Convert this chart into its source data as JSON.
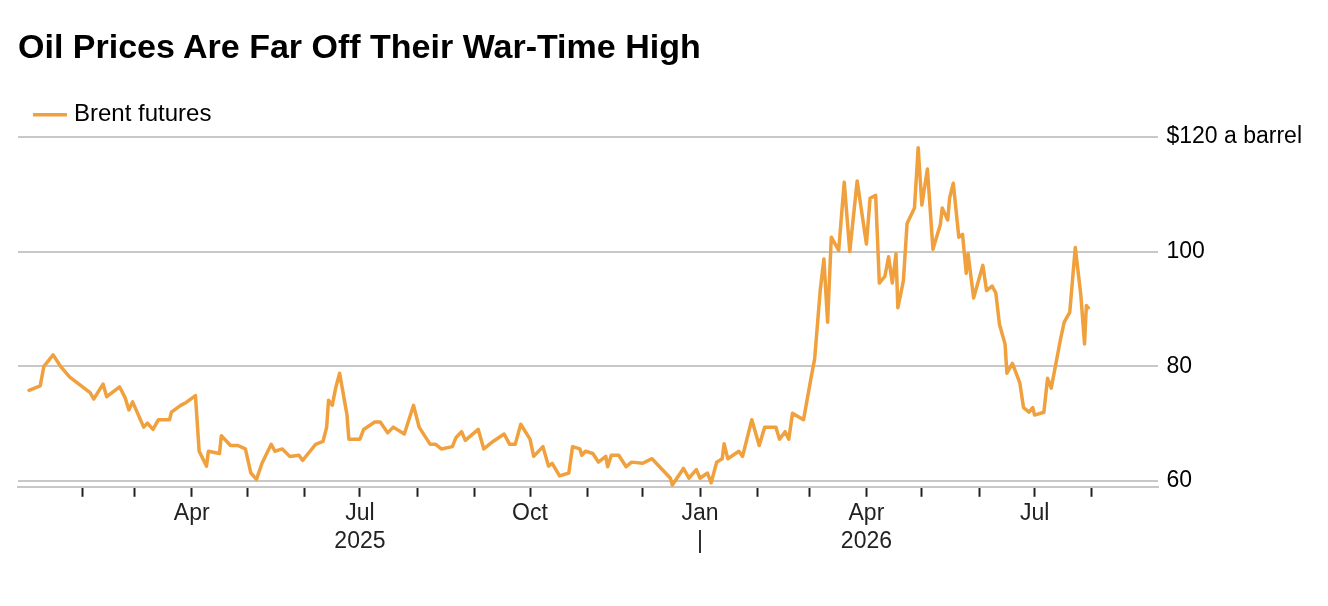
{
  "chart_data": {
    "type": "line",
    "title": "Oil Prices Are Far Off Their War-Time High",
    "x": [
      "2025-01-03",
      "2025-01-09",
      "2025-01-11",
      "2025-01-16",
      "2025-01-20",
      "2025-01-25",
      "2025-02-05",
      "2025-02-07",
      "2025-02-12",
      "2025-02-14",
      "2025-02-21",
      "2025-02-24",
      "2025-02-26",
      "2025-02-28",
      "2025-03-06",
      "2025-03-08",
      "2025-03-11",
      "2025-03-14",
      "2025-03-20",
      "2025-03-21",
      "2025-03-26",
      "2025-03-29",
      "2025-04-03",
      "2025-04-05",
      "2025-04-09",
      "2025-04-10",
      "2025-04-16",
      "2025-04-17",
      "2025-04-22",
      "2025-04-26",
      "2025-04-30",
      "2025-05-03",
      "2025-05-06",
      "2025-05-09",
      "2025-05-14",
      "2025-05-16",
      "2025-05-20",
      "2025-05-24",
      "2025-05-29",
      "2025-05-31",
      "2025-06-04",
      "2025-06-07",
      "2025-06-11",
      "2025-06-13",
      "2025-06-14",
      "2025-06-16",
      "2025-06-18",
      "2025-06-20",
      "2025-06-24",
      "2025-06-25",
      "2025-07-01",
      "2025-07-03",
      "2025-07-09",
      "2025-07-12",
      "2025-07-16",
      "2025-07-19",
      "2025-07-25",
      "2025-07-30",
      "2025-08-02",
      "2025-08-08",
      "2025-08-11",
      "2025-08-14",
      "2025-08-20",
      "2025-08-22",
      "2025-08-25",
      "2025-08-27",
      "2025-09-03",
      "2025-09-06",
      "2025-09-11",
      "2025-09-17",
      "2025-09-20",
      "2025-09-23",
      "2025-09-26",
      "2025-10-01",
      "2025-10-03",
      "2025-10-08",
      "2025-10-11",
      "2025-10-13",
      "2025-10-17",
      "2025-10-22",
      "2025-10-24",
      "2025-10-28",
      "2025-10-29",
      "2025-10-31",
      "2025-11-04",
      "2025-11-07",
      "2025-11-11",
      "2025-11-12",
      "2025-11-14",
      "2025-11-18",
      "2025-11-22",
      "2025-11-25",
      "2025-12-01",
      "2025-12-06",
      "2025-12-11",
      "2025-12-16",
      "2025-12-17",
      "2025-12-23",
      "2025-12-26",
      "2025-12-30",
      "2026-01-01",
      "2026-01-05",
      "2026-01-07",
      "2026-01-10",
      "2026-01-13",
      "2026-01-14",
      "2026-01-16",
      "2026-01-22",
      "2026-01-24",
      "2026-01-29",
      "2026-02-02",
      "2026-02-05",
      "2026-02-11",
      "2026-02-13",
      "2026-02-16",
      "2026-02-18",
      "2026-02-20",
      "2026-02-26",
      "2026-03-02",
      "2026-03-04",
      "2026-03-07",
      "2026-03-09",
      "2026-03-11",
      "2026-03-13",
      "2026-03-17",
      "2026-03-20",
      "2026-03-23",
      "2026-03-27",
      "2026-04-01",
      "2026-04-03",
      "2026-04-06",
      "2026-04-08",
      "2026-04-11",
      "2026-04-13",
      "2026-04-15",
      "2026-04-17",
      "2026-04-18",
      "2026-04-21",
      "2026-04-23",
      "2026-04-27",
      "2026-04-29",
      "2026-05-01",
      "2026-05-04",
      "2026-05-07",
      "2026-05-11",
      "2026-05-12",
      "2026-05-15",
      "2026-05-16",
      "2026-05-18",
      "2026-05-21",
      "2026-05-23",
      "2026-05-25",
      "2026-05-26",
      "2026-05-29",
      "2026-06-03",
      "2026-06-05",
      "2026-06-08",
      "2026-06-10",
      "2026-06-12",
      "2026-06-15",
      "2026-06-16",
      "2026-06-19",
      "2026-06-23",
      "2026-06-25",
      "2026-06-28",
      "2026-06-30",
      "2026-07-01",
      "2026-07-06",
      "2026-07-08",
      "2026-07-10",
      "2026-07-15",
      "2026-07-17",
      "2026-07-20",
      "2026-07-23",
      "2026-07-26",
      "2026-07-28",
      "2026-07-29",
      "2026-07-30"
    ],
    "series": [
      {
        "name": "Brent futures",
        "color": "#f0a03c",
        "values": [
          75.8,
          76.6,
          80.0,
          82.0,
          80.0,
          78.1,
          75.4,
          74.3,
          76.9,
          74.7,
          76.4,
          74.5,
          72.4,
          73.8,
          69.4,
          70.1,
          69.0,
          70.7,
          70.7,
          72.0,
          73.2,
          73.7,
          74.9,
          65.2,
          62.6,
          65.2,
          64.8,
          67.9,
          66.2,
          66.2,
          65.6,
          61.4,
          60.3,
          63.1,
          66.4,
          65.2,
          65.6,
          64.3,
          64.5,
          63.6,
          65.2,
          66.4,
          66.9,
          69.4,
          74.1,
          73.2,
          76.4,
          78.8,
          71.5,
          67.3,
          67.3,
          69.0,
          70.3,
          70.3,
          68.4,
          69.4,
          68.2,
          73.2,
          69.4,
          66.4,
          66.4,
          65.6,
          66.0,
          67.6,
          68.6,
          67.1,
          69.0,
          65.6,
          66.9,
          68.2,
          66.4,
          66.4,
          69.9,
          67.3,
          64.3,
          66.0,
          62.6,
          63.1,
          60.9,
          61.4,
          66.0,
          65.6,
          64.5,
          65.2,
          64.8,
          63.3,
          64.3,
          62.5,
          64.5,
          64.5,
          62.5,
          63.3,
          63.1,
          63.9,
          62.2,
          60.5,
          59.3,
          62.2,
          60.5,
          62.0,
          60.5,
          61.4,
          59.7,
          63.3,
          63.9,
          66.5,
          63.9,
          65.2,
          64.3,
          70.7,
          66.2,
          69.4,
          69.4,
          67.3,
          68.6,
          67.3,
          71.8,
          70.7,
          77.9,
          81.3,
          93.2,
          98.7,
          87.7,
          102.5,
          100.2,
          112.1,
          100.0,
          112.3,
          101.3,
          109.3,
          109.8,
          94.5,
          95.7,
          99.1,
          94.5,
          99.6,
          90.2,
          94.9,
          104.9,
          107.6,
          118.1,
          108.1,
          114.4,
          100.4,
          104.7,
          107.6,
          105.5,
          109.3,
          111.9,
          102.5,
          103.0,
          96.2,
          99.6,
          91.9,
          97.6,
          93.2,
          94.0,
          92.8,
          87.3,
          83.9,
          78.8,
          80.5,
          77.1,
          72.8,
          72.0,
          72.8,
          71.5,
          72.0,
          77.9,
          76.2,
          84.7,
          87.7,
          89.4,
          100.7,
          92.4,
          83.9,
          90.6,
          90.2
        ]
      }
    ],
    "xlim": [
      "2024-12-28",
      "2026-09-06"
    ],
    "xticks": [
      {
        "value": "2025-02-01",
        "label": null
      },
      {
        "value": "2025-03-01",
        "label": null
      },
      {
        "value": "2025-04-01",
        "label": "Apr"
      },
      {
        "value": "2025-05-01",
        "label": null
      },
      {
        "value": "2025-06-01",
        "label": null
      },
      {
        "value": "2025-07-01",
        "label": "Jul\n2025"
      },
      {
        "value": "2025-08-01",
        "label": null
      },
      {
        "value": "2025-09-01",
        "label": null
      },
      {
        "value": "2025-10-01",
        "label": "Oct"
      },
      {
        "value": "2025-11-01",
        "label": null
      },
      {
        "value": "2025-12-01",
        "label": null
      },
      {
        "value": "2026-01-01",
        "label": "Jan\n|"
      },
      {
        "value": "2026-02-01",
        "label": null
      },
      {
        "value": "2026-03-01",
        "label": null
      },
      {
        "value": "2026-04-01",
        "label": "Apr\n2026"
      },
      {
        "value": "2026-05-01",
        "label": null
      },
      {
        "value": "2026-06-01",
        "label": null
      },
      {
        "value": "2026-07-01",
        "label": "Jul"
      },
      {
        "value": "2026-08-01",
        "label": null
      }
    ],
    "ylim": [
      59,
      120
    ],
    "yticks": [
      {
        "value": 60,
        "label": "60"
      },
      {
        "value": 80,
        "label": "80"
      },
      {
        "value": 100,
        "label": "100"
      },
      {
        "value": 120,
        "label": "$120 a barrel"
      }
    ],
    "grid": "y",
    "legend": "top left",
    "marker": "none",
    "line_style": "solid"
  }
}
